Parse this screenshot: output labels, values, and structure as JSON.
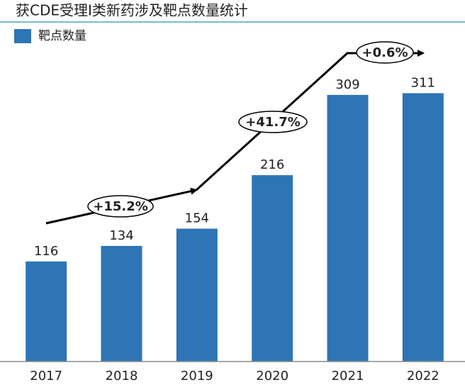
{
  "chart_data": {
    "type": "bar",
    "title": "获CDE受理I类新药涉及靶点数量统计",
    "categories": [
      "2017",
      "2018",
      "2019",
      "2020",
      "2021",
      "2022"
    ],
    "series": [
      {
        "name": "靶点数量",
        "color": "#2e75b6",
        "values": [
          116,
          134,
          154,
          216,
          309,
          311
        ]
      }
    ],
    "ylim": [
      0,
      350
    ],
    "annotations": [
      "+15.2%",
      "+41.7%",
      "+0.6%"
    ]
  }
}
